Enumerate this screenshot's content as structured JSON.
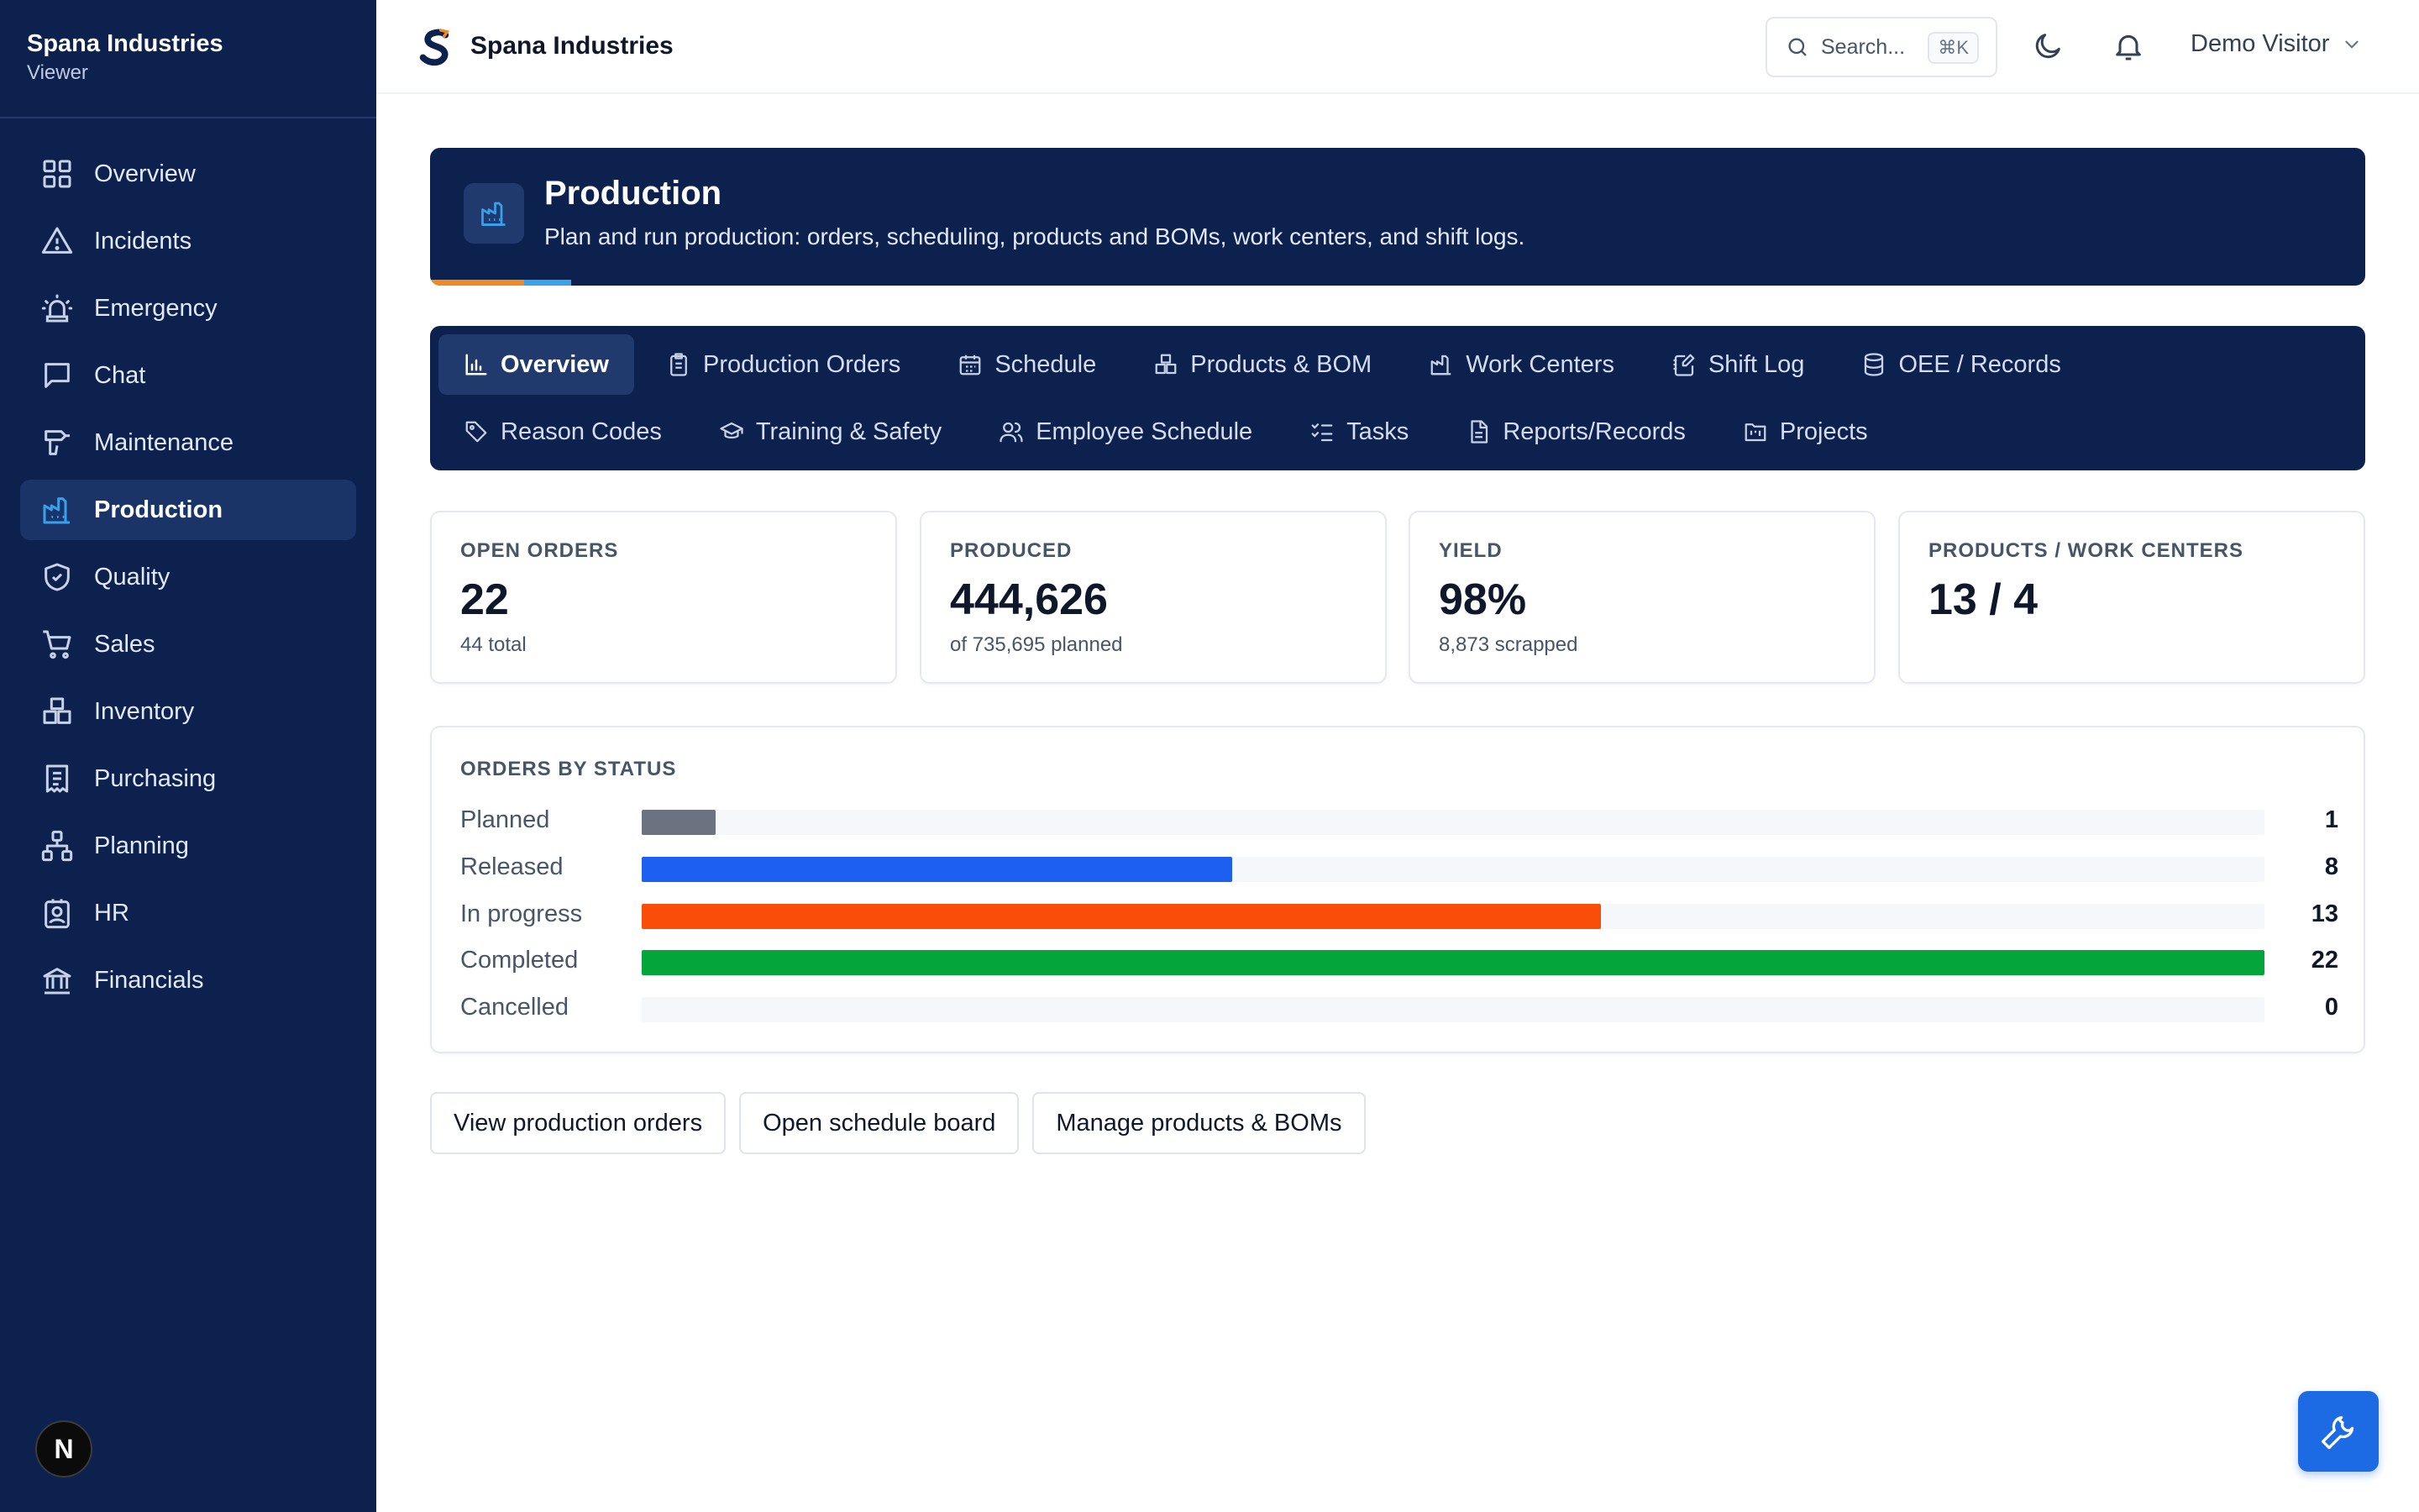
{
  "sidebar": {
    "brand": "Spana Industries",
    "role": "Viewer",
    "items": [
      {
        "label": "Overview",
        "icon": "grid-icon"
      },
      {
        "label": "Incidents",
        "icon": "warning-triangle-icon"
      },
      {
        "label": "Emergency",
        "icon": "siren-icon"
      },
      {
        "label": "Chat",
        "icon": "chat-bubble-icon"
      },
      {
        "label": "Maintenance",
        "icon": "drill-icon"
      },
      {
        "label": "Production",
        "icon": "factory-icon",
        "active": true
      },
      {
        "label": "Quality",
        "icon": "shield-check-icon"
      },
      {
        "label": "Sales",
        "icon": "shopping-cart-icon"
      },
      {
        "label": "Inventory",
        "icon": "boxes-icon"
      },
      {
        "label": "Purchasing",
        "icon": "receipt-icon"
      },
      {
        "label": "Planning",
        "icon": "network-icon"
      },
      {
        "label": "HR",
        "icon": "id-badge-icon"
      },
      {
        "label": "Financials",
        "icon": "bank-icon"
      }
    ],
    "badge": "N"
  },
  "topbar": {
    "title": "Spana Industries",
    "search_placeholder": "Search...",
    "search_shortcut": "⌘K",
    "user": "Demo Visitor"
  },
  "hero": {
    "title": "Production",
    "subtitle": "Plan and run production: orders, scheduling, products and BOMs, work centers, and shift logs."
  },
  "tabs": [
    {
      "label": "Overview",
      "icon": "bar-chart-icon",
      "active": true
    },
    {
      "label": "Production Orders",
      "icon": "clipboard-icon"
    },
    {
      "label": "Schedule",
      "icon": "calendar-icon"
    },
    {
      "label": "Products & BOM",
      "icon": "boxes-icon"
    },
    {
      "label": "Work Centers",
      "icon": "factory-icon"
    },
    {
      "label": "Shift Log",
      "icon": "notebook-pen-icon"
    },
    {
      "label": "OEE / Records",
      "icon": "database-icon"
    },
    {
      "label": "Reason Codes",
      "icon": "tag-icon"
    },
    {
      "label": "Training & Safety",
      "icon": "graduation-cap-icon"
    },
    {
      "label": "Employee Schedule",
      "icon": "users-icon"
    },
    {
      "label": "Tasks",
      "icon": "list-checks-icon"
    },
    {
      "label": "Reports/Records",
      "icon": "file-text-icon"
    },
    {
      "label": "Projects",
      "icon": "folder-kanban-icon"
    }
  ],
  "stats": [
    {
      "label": "OPEN ORDERS",
      "value": "22",
      "sub": "44 total"
    },
    {
      "label": "PRODUCED",
      "value": "444,626",
      "sub": "of 735,695 planned"
    },
    {
      "label": "YIELD",
      "value": "98%",
      "sub": "8,873 scrapped"
    },
    {
      "label": "PRODUCTS / WORK CENTERS",
      "value": "13 / 4",
      "sub": ""
    }
  ],
  "orders_by_status": {
    "title": "ORDERS BY STATUS",
    "max": 22,
    "rows": [
      {
        "label": "Planned",
        "count": 1,
        "color": "#6b7280"
      },
      {
        "label": "Released",
        "count": 8,
        "color": "#1d5ff0"
      },
      {
        "label": "In progress",
        "count": 13,
        "color": "#fa4d0a"
      },
      {
        "label": "Completed",
        "count": 22,
        "color": "#04a63c"
      },
      {
        "label": "Cancelled",
        "count": 0,
        "color": "#9ca3af"
      }
    ]
  },
  "actions": {
    "view_orders": "View production orders",
    "schedule_board": "Open schedule board",
    "manage_products": "Manage products & BOMs"
  },
  "colors": {
    "navy": "#0c214d",
    "accent_blue": "#3aa0ee",
    "hero_stripe_orange": "#f08a24",
    "hero_stripe_blue": "#38a3e6",
    "fab": "#1d6ae5"
  }
}
